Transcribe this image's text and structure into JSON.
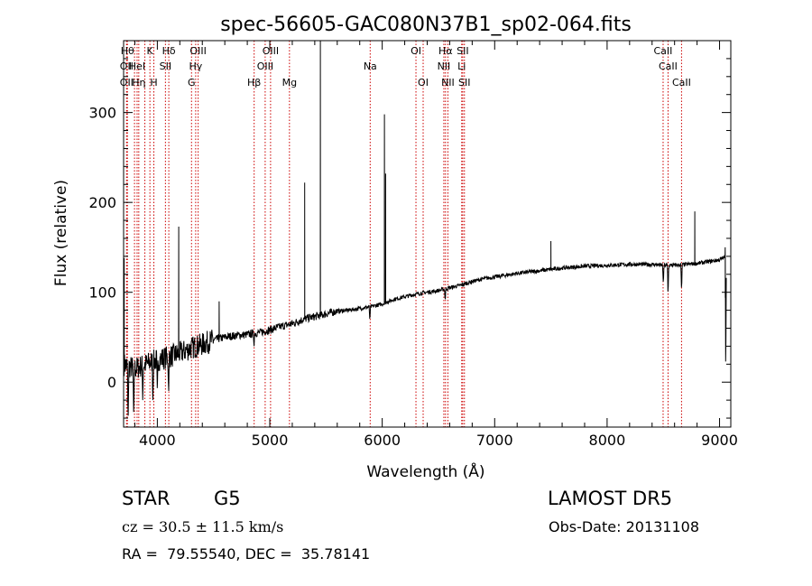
{
  "chart_data": {
    "type": "line",
    "title": "spec-56605-GAC080N37B1_sp02-064.fits",
    "xlabel": "Wavelength (Å)",
    "ylabel": "Flux (relative)",
    "xlim": [
      3700,
      9100
    ],
    "ylim": [
      -50,
      380
    ],
    "xticks": [
      4000,
      5000,
      6000,
      7000,
      8000,
      9000
    ],
    "xtick_labels": [
      "4000",
      "5000",
      "6000",
      "7000",
      "8000",
      "9000"
    ],
    "yticks": [
      0,
      100,
      200,
      300
    ],
    "ytick_labels": [
      "0",
      "100",
      "200",
      "300"
    ],
    "grid": false,
    "line_color": "#000000",
    "marker_color": "#cc0000",
    "continuum": [
      [
        3700,
        20
      ],
      [
        3800,
        15
      ],
      [
        3900,
        20
      ],
      [
        4000,
        25
      ],
      [
        4100,
        28
      ],
      [
        4200,
        32
      ],
      [
        4300,
        38
      ],
      [
        4400,
        42
      ],
      [
        4500,
        47
      ],
      [
        4600,
        50
      ],
      [
        4700,
        52
      ],
      [
        4800,
        53
      ],
      [
        4900,
        55
      ],
      [
        5000,
        58
      ],
      [
        5100,
        62
      ],
      [
        5200,
        65
      ],
      [
        5300,
        70
      ],
      [
        5400,
        73
      ],
      [
        5500,
        76
      ],
      [
        5600,
        79
      ],
      [
        5700,
        80
      ],
      [
        5800,
        82
      ],
      [
        5900,
        84
      ],
      [
        6000,
        87
      ],
      [
        6100,
        92
      ],
      [
        6200,
        95
      ],
      [
        6300,
        98
      ],
      [
        6400,
        100
      ],
      [
        6500,
        102
      ],
      [
        6600,
        105
      ],
      [
        6700,
        108
      ],
      [
        6800,
        112
      ],
      [
        6900,
        115
      ],
      [
        7000,
        117
      ],
      [
        7200,
        121
      ],
      [
        7400,
        124
      ],
      [
        7600,
        127
      ],
      [
        7800,
        129
      ],
      [
        8000,
        130
      ],
      [
        8200,
        131
      ],
      [
        8400,
        131
      ],
      [
        8500,
        130
      ],
      [
        8600,
        130
      ],
      [
        8800,
        132
      ],
      [
        9000,
        136
      ],
      [
        9060,
        140
      ]
    ],
    "peaks": [
      {
        "x": 3705,
        "y": 138
      },
      {
        "x": 4190,
        "y": 173
      },
      {
        "x": 4550,
        "y": 90
      },
      {
        "x": 5310,
        "y": 222
      },
      {
        "x": 5450,
        "y": 380
      },
      {
        "x": 6020,
        "y": 298
      },
      {
        "x": 6030,
        "y": 232
      },
      {
        "x": 7500,
        "y": 157
      },
      {
        "x": 8780,
        "y": 190
      },
      {
        "x": 9050,
        "y": 150
      }
    ],
    "dips": [
      {
        "x": 3740,
        "y": -50
      },
      {
        "x": 3790,
        "y": -45
      },
      {
        "x": 3870,
        "y": -20
      },
      {
        "x": 3960,
        "y": -20
      },
      {
        "x": 4000,
        "y": -15
      },
      {
        "x": 4100,
        "y": -15
      },
      {
        "x": 4860,
        "y": 40
      },
      {
        "x": 5890,
        "y": 68
      },
      {
        "x": 6560,
        "y": 90
      },
      {
        "x": 8500,
        "y": 108
      },
      {
        "x": 8542,
        "y": 95
      },
      {
        "x": 8662,
        "y": 100
      },
      {
        "x": 9055,
        "y": 0
      }
    ],
    "lines": [
      {
        "x": 3734,
        "label": "Hθ",
        "row": 0
      },
      {
        "x": 3727,
        "label": "OII",
        "row": 1
      },
      {
        "x": 3727,
        "label": "OII",
        "row": 2
      },
      {
        "x": 3797,
        "label": "",
        "row": 0
      },
      {
        "x": 3820,
        "label": "HeI",
        "row": 1
      },
      {
        "x": 3835,
        "label": "Hη",
        "row": 2
      },
      {
        "x": 3889,
        "label": "",
        "row": 0
      },
      {
        "x": 3934,
        "label": "K",
        "row": 0
      },
      {
        "x": 3969,
        "label": "H",
        "row": 2
      },
      {
        "x": 4072,
        "label": "SII",
        "row": 1
      },
      {
        "x": 4102,
        "label": "Hδ",
        "row": 0
      },
      {
        "x": 4304,
        "label": "G",
        "row": 2
      },
      {
        "x": 4341,
        "label": "Hγ",
        "row": 1
      },
      {
        "x": 4363,
        "label": "OIII",
        "row": 0
      },
      {
        "x": 4861,
        "label": "Hβ",
        "row": 2
      },
      {
        "x": 4959,
        "label": "OIII",
        "row": 1
      },
      {
        "x": 5007,
        "label": "OIII",
        "row": 0
      },
      {
        "x": 5175,
        "label": "Mg",
        "row": 2
      },
      {
        "x": 5893,
        "label": "Na",
        "row": 1
      },
      {
        "x": 6300,
        "label": "OI",
        "row": 0
      },
      {
        "x": 6364,
        "label": "OI",
        "row": 2
      },
      {
        "x": 6548,
        "label": "NII",
        "row": 1
      },
      {
        "x": 6563,
        "label": "Hα",
        "row": 0
      },
      {
        "x": 6584,
        "label": "NII",
        "row": 2
      },
      {
        "x": 6707,
        "label": "Li",
        "row": 1
      },
      {
        "x": 6716,
        "label": "SII",
        "row": 0
      },
      {
        "x": 6731,
        "label": "SII",
        "row": 2
      },
      {
        "x": 8498,
        "label": "CaII",
        "row": 0
      },
      {
        "x": 8542,
        "label": "CaII",
        "row": 1
      },
      {
        "x": 8662,
        "label": "CaII",
        "row": 2
      }
    ]
  },
  "info": {
    "class_label": "STAR",
    "subclass": "G5",
    "survey": "LAMOST DR5",
    "velocity": "cz = 30.5 ± 11.5 km/s",
    "obs_date": "Obs-Date: 20131108",
    "coords": "RA =  79.55540, DEC =  35.78141"
  }
}
